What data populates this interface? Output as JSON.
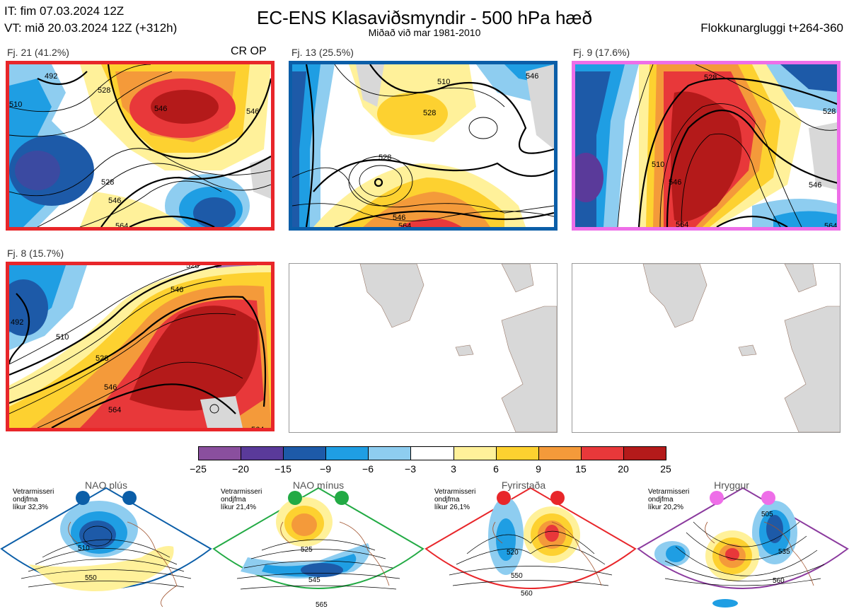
{
  "header": {
    "issue_time": "IT: fim 07.03.2024 12Z",
    "valid_time": "VT: mið 20.03.2024 12Z  (+312h)",
    "title": "EC-ENS Klasaviðsmyndir - 500 hPa hæð",
    "subtitle": "Miðað við mar 1981-2010",
    "window": "Flokkunargluggi t+264-360"
  },
  "clusters": [
    {
      "label": "Fj. 21 (41.2%)",
      "tag": "CR OP",
      "border": "#e8262a",
      "contours": [
        "492",
        "510",
        "528",
        "528",
        "546",
        "546",
        "546",
        "564"
      ]
    },
    {
      "label": "Fj. 13 (25.5%)",
      "tag": "",
      "border": "#0b5ea8",
      "contours": [
        "510",
        "528",
        "528",
        "546",
        "546",
        "564"
      ]
    },
    {
      "label": "Fj. 9 (17.6%)",
      "tag": "",
      "border": "#ee6ee8",
      "contours": [
        "528",
        "528",
        "510",
        "546",
        "546",
        "564",
        "564"
      ]
    },
    {
      "label": "Fj. 8 (15.7%)",
      "tag": "",
      "border": "#e8262a",
      "contours": [
        "492",
        "510",
        "528",
        "528",
        "546",
        "546",
        "564",
        "564"
      ]
    }
  ],
  "colorbar": {
    "colors": [
      "#8a4f9e",
      "#5a3a9a",
      "#1d5aa8",
      "#1f9ee3",
      "#8ecdf0",
      "#ffffff",
      "#fff19a",
      "#fdd130",
      "#f49a3a",
      "#e8383a",
      "#b41a1a"
    ],
    "labels": [
      "−25",
      "−20",
      "−15",
      "−9",
      "−6",
      "−3",
      "3",
      "6",
      "9",
      "15",
      "20",
      "25"
    ]
  },
  "regimes": [
    {
      "name": "NAO plús",
      "text": [
        "Vetrarmisseri",
        "ondjfma",
        "líkur 32,3%"
      ],
      "color": "#0b5ea8",
      "contours": [
        "510",
        "550"
      ]
    },
    {
      "name": "NAO mínus",
      "text": [
        "Vetrarmisseri",
        "ondjfma",
        "líkur 21,4%"
      ],
      "color": "#22aa44",
      "contours": [
        "525",
        "545",
        "565"
      ]
    },
    {
      "name": "Fyrirstaða",
      "text": [
        "Vetrarmisseri",
        "ondjfma",
        "líkur 26,1%"
      ],
      "color": "#e8262a",
      "contours": [
        "520",
        "550",
        "560"
      ]
    },
    {
      "name": "Hryggur",
      "text": [
        "Vetrarmisseri",
        "ondjfma",
        "líkur 20,2%"
      ],
      "color": "#8b3a9e",
      "dot_color": "#ee6ee8",
      "contours": [
        "505",
        "535",
        "560"
      ]
    }
  ]
}
